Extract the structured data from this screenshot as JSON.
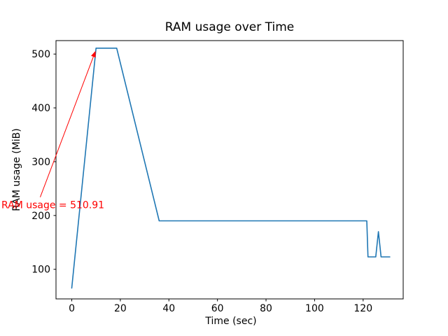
{
  "chart_data": {
    "type": "line",
    "title": "RAM usage over Time",
    "xlabel": "Time (sec)",
    "ylabel": "RAM usage (MiB)",
    "xlim": [
      -6.5,
      136.5
    ],
    "ylim": [
      45,
      525
    ],
    "xticks": [
      0,
      20,
      40,
      60,
      80,
      100,
      120
    ],
    "yticks": [
      100,
      200,
      300,
      400,
      500
    ],
    "grid": false,
    "legend": "none",
    "line_color": "#1f77b4",
    "series": [
      {
        "name": "RAM usage",
        "points": [
          [
            0,
            65
          ],
          [
            10,
            510.91
          ],
          [
            11,
            511
          ],
          [
            18.5,
            511
          ],
          [
            36,
            190
          ],
          [
            121.5,
            190
          ],
          [
            122,
            123
          ],
          [
            125.2,
            123
          ],
          [
            126.3,
            170
          ],
          [
            127.4,
            123
          ],
          [
            131,
            123
          ]
        ]
      }
    ],
    "annotation": {
      "text": "RAM usage = 510.91",
      "value": 510.91,
      "color": "#ff0000",
      "text_pos": [
        -29,
        220
      ],
      "arrow_start": [
        -13,
        234
      ],
      "arrow_tip": [
        9.8,
        506
      ]
    }
  }
}
